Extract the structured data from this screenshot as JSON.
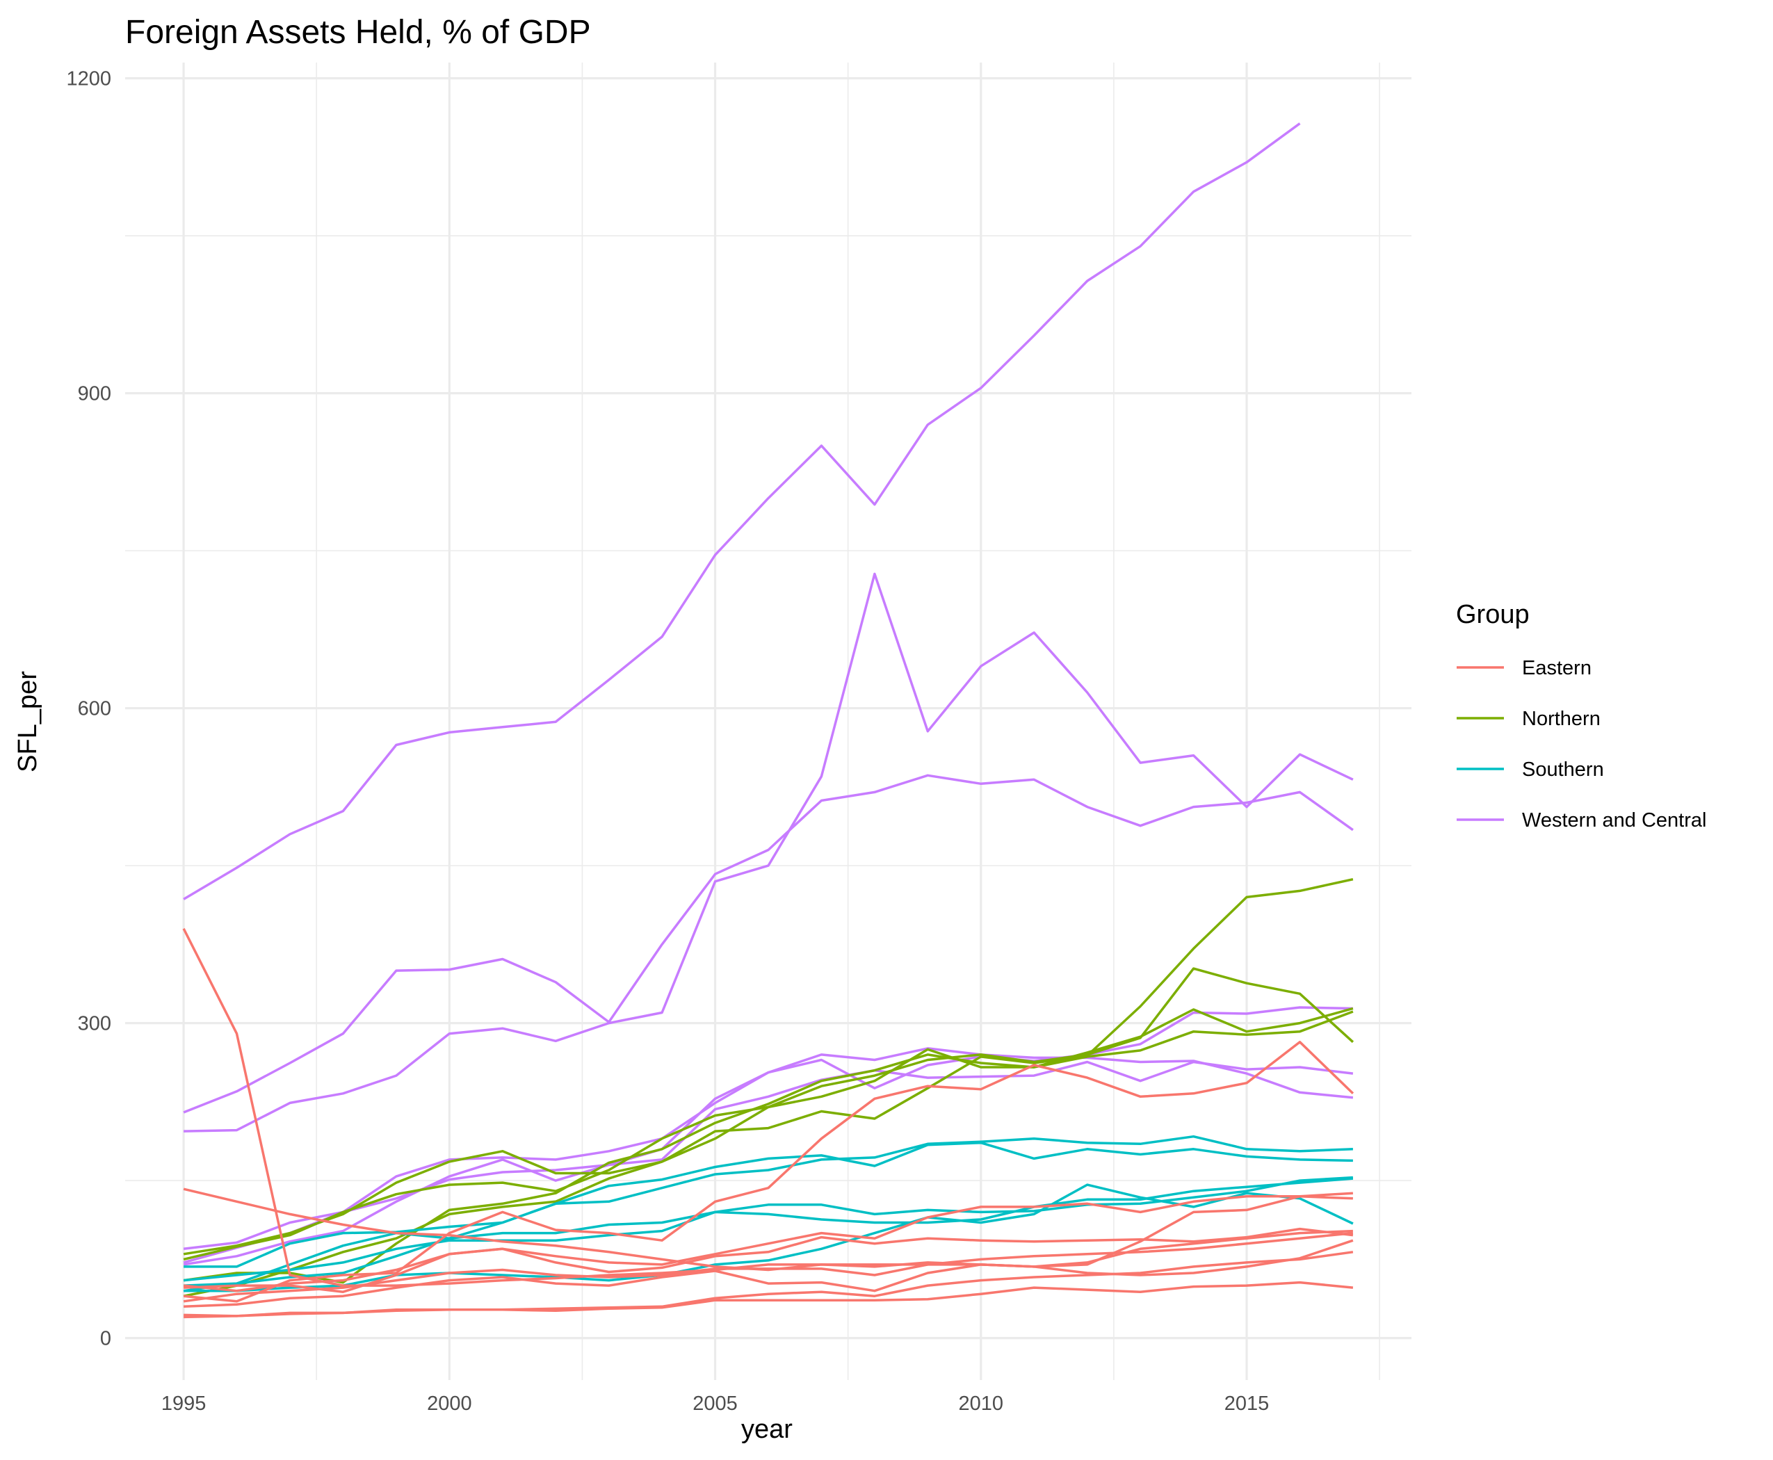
{
  "chart_data": {
    "type": "line",
    "title": "Foreign Assets Held, % of GDP",
    "xlabel": "year",
    "ylabel": "SFL_per",
    "xlim": [
      1993.9,
      2018.1
    ],
    "ylim": [
      -40,
      1215
    ],
    "x_ticks": [
      1995,
      2000,
      2005,
      2010,
      2015
    ],
    "x_tick_labels": [
      "1995",
      "2000",
      "2005",
      "2010",
      "2015"
    ],
    "y_ticks": [
      0,
      300,
      600,
      900,
      1200
    ],
    "y_tick_labels": [
      "0",
      "300",
      "600",
      "900",
      "1200"
    ],
    "x_minor_ticks": [
      1997.5,
      2002.5,
      2007.5,
      2012.5,
      2017.5
    ],
    "y_minor_ticks": [
      150,
      450,
      750,
      1050
    ],
    "grid": true,
    "legend": {
      "title": "Group",
      "position": "right",
      "items": [
        {
          "label": "Eastern",
          "color": "#F8766D"
        },
        {
          "label": "Northern",
          "color": "#7CAE00"
        },
        {
          "label": "Southern",
          "color": "#00BFC4"
        },
        {
          "label": "Western and Central",
          "color": "#C77CFF"
        }
      ]
    },
    "x": [
      1995,
      1996,
      1997,
      1998,
      1999,
      2000,
      2001,
      2002,
      2003,
      2004,
      2005,
      2006,
      2007,
      2008,
      2009,
      2010,
      2011,
      2012,
      2013,
      2014,
      2015,
      2016,
      2017
    ],
    "series": [
      {
        "group": "Western and Central",
        "values": [
          418,
          448,
          480,
          502,
          565,
          577,
          582,
          587,
          627,
          668,
          746,
          800,
          850,
          794,
          870,
          905,
          955,
          1007,
          1040,
          1092,
          1120,
          1157,
          null
        ]
      },
      {
        "group": "Western and Central",
        "values": [
          215,
          235,
          262,
          290,
          350,
          351,
          361,
          339,
          301,
          375,
          442,
          465,
          512,
          520,
          536,
          528,
          532,
          506,
          488,
          506,
          510,
          520,
          484
        ]
      },
      {
        "group": "Western and Central",
        "values": [
          197,
          198,
          224,
          233,
          250,
          290,
          295,
          283,
          300,
          310,
          435,
          450,
          535,
          728,
          578,
          640,
          672,
          615,
          548,
          555,
          506,
          556,
          532
        ]
      },
      {
        "group": "Western and Central",
        "values": [
          85,
          91,
          110,
          120,
          154,
          170,
          172,
          170,
          178,
          190,
          224,
          253,
          270,
          265,
          276,
          270,
          267,
          267,
          263,
          264,
          252,
          234,
          229
        ]
      },
      {
        "group": "Western and Central",
        "values": [
          70,
          78,
          92,
          102,
          130,
          154,
          170,
          150,
          165,
          180,
          228,
          253,
          265,
          238,
          260,
          268,
          264,
          270,
          280,
          310,
          309,
          315,
          314
        ]
      },
      {
        "group": "Western and Central",
        "values": [
          72,
          86,
          100,
          120,
          133,
          151,
          158,
          160,
          165,
          170,
          218,
          230,
          246,
          255,
          248,
          249,
          250,
          263,
          245,
          263,
          256,
          258,
          252
        ]
      },
      {
        "group": "Northern",
        "values": [
          80,
          88,
          100,
          118,
          148,
          168,
          178,
          157,
          157,
          168,
          197,
          200,
          216,
          209,
          238,
          268,
          262,
          269,
          316,
          371,
          420,
          426,
          437
        ]
      },
      {
        "group": "Northern",
        "values": [
          75,
          87,
          98,
          120,
          137,
          146,
          148,
          140,
          160,
          190,
          212,
          220,
          230,
          245,
          275,
          258,
          258,
          268,
          274,
          292,
          289,
          292,
          311
        ]
      },
      {
        "group": "Northern",
        "values": [
          55,
          62,
          62,
          53,
          90,
          122,
          128,
          138,
          167,
          180,
          205,
          223,
          245,
          255,
          270,
          262,
          258,
          272,
          287,
          313,
          292,
          300,
          314
        ]
      },
      {
        "group": "Northern",
        "values": [
          40,
          50,
          65,
          82,
          95,
          118,
          125,
          130,
          152,
          168,
          190,
          220,
          240,
          250,
          265,
          270,
          263,
          270,
          286,
          352,
          338,
          328,
          282
        ]
      },
      {
        "group": "Southern",
        "values": [
          68,
          68,
          90,
          100,
          101,
          106,
          110,
          128,
          145,
          151,
          163,
          171,
          174,
          164,
          184,
          186,
          171,
          180,
          175,
          180,
          173,
          170,
          169
        ]
      },
      {
        "group": "Southern",
        "values": [
          55,
          60,
          65,
          72,
          85,
          93,
          93,
          93,
          98,
          102,
          120,
          127,
          127,
          118,
          122,
          120,
          121,
          127,
          128,
          134,
          140,
          150,
          153
        ]
      },
      {
        "group": "Southern",
        "values": [
          45,
          52,
          70,
          88,
          100,
          95,
          100,
          100,
          108,
          110,
          120,
          118,
          113,
          110,
          110,
          113,
          125,
          132,
          132,
          140,
          144,
          148,
          152
        ]
      },
      {
        "group": "Southern",
        "values": [
          50,
          52,
          58,
          62,
          78,
          95,
          110,
          128,
          130,
          143,
          156,
          160,
          170,
          172,
          185,
          187,
          190,
          186,
          185,
          192,
          180,
          178,
          180
        ]
      },
      {
        "group": "Southern",
        "values": [
          45,
          45,
          48,
          50,
          60,
          62,
          60,
          58,
          55,
          60,
          70,
          74,
          85,
          100,
          115,
          110,
          118,
          146,
          134,
          125,
          138,
          133,
          109
        ]
      },
      {
        "group": "Eastern",
        "values": [
          390,
          290,
          60,
          50,
          50,
          52,
          55,
          57,
          60,
          62,
          65,
          70,
          70,
          70,
          70,
          75,
          78,
          80,
          82,
          85,
          90,
          95,
          100
        ]
      },
      {
        "group": "Eastern",
        "values": [
          142,
          130,
          118,
          108,
          100,
          98,
          92,
          88,
          82,
          75,
          68,
          65,
          70,
          68,
          72,
          70,
          68,
          72,
          85,
          90,
          95,
          100,
          102
        ]
      },
      {
        "group": "Eastern",
        "values": [
          50,
          45,
          52,
          55,
          65,
          80,
          85,
          72,
          63,
          67,
          78,
          82,
          96,
          90,
          95,
          93,
          92,
          93,
          94,
          92,
          96,
          104,
          98
        ]
      },
      {
        "group": "Eastern",
        "values": [
          40,
          35,
          55,
          60,
          62,
          100,
          120,
          103,
          100,
          93,
          130,
          143,
          190,
          228,
          240,
          237,
          260,
          248,
          230,
          233,
          243,
          282,
          233
        ]
      },
      {
        "group": "Eastern",
        "values": [
          35,
          42,
          45,
          48,
          55,
          62,
          65,
          60,
          58,
          60,
          66,
          66,
          66,
          60,
          70,
          70,
          68,
          70,
          92,
          120,
          122,
          135,
          133
        ]
      },
      {
        "group": "Eastern",
        "values": [
          48,
          50,
          50,
          44,
          60,
          80,
          85,
          78,
          72,
          70,
          80,
          90,
          100,
          95,
          115,
          125,
          125,
          128,
          120,
          130,
          135,
          135,
          138
        ]
      },
      {
        "group": "Eastern",
        "values": [
          30,
          32,
          38,
          40,
          48,
          55,
          58,
          52,
          50,
          58,
          64,
          52,
          53,
          45,
          62,
          70,
          68,
          62,
          60,
          62,
          68,
          76,
          93
        ]
      },
      {
        "group": "Eastern",
        "values": [
          22,
          21,
          23,
          24,
          27,
          27,
          27,
          26,
          28,
          29,
          36,
          36,
          36,
          36,
          37,
          42,
          48,
          46,
          44,
          49,
          50,
          53,
          48
        ]
      },
      {
        "group": "Eastern",
        "values": [
          20,
          21,
          24,
          24,
          26,
          27,
          27,
          28,
          29,
          30,
          38,
          42,
          44,
          40,
          50,
          55,
          58,
          60,
          62,
          68,
          72,
          75,
          82
        ]
      }
    ]
  }
}
